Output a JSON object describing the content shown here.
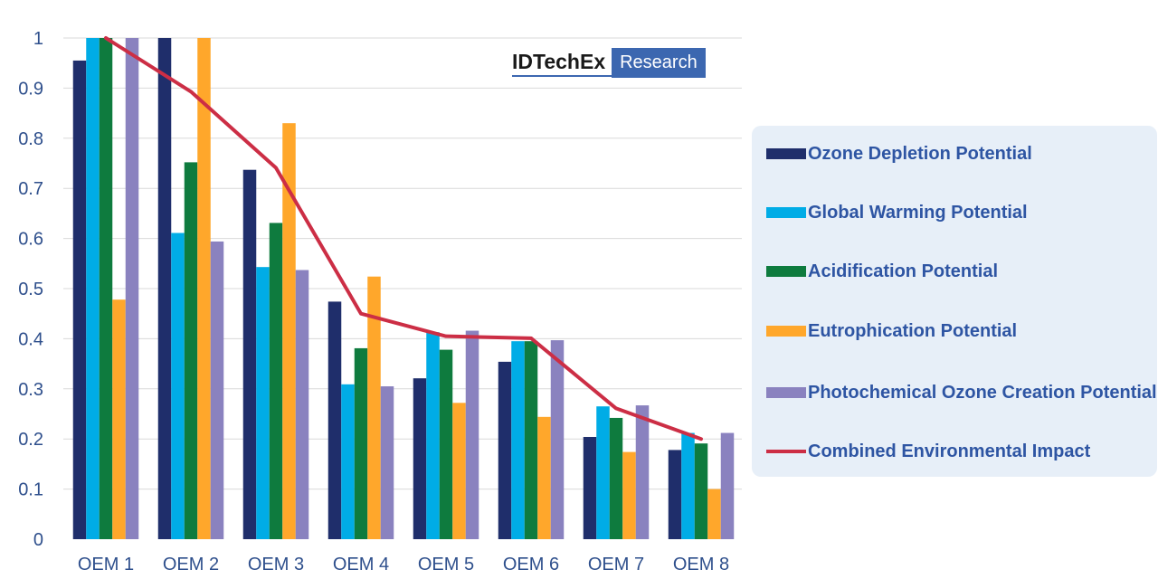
{
  "chart_data": {
    "type": "bar",
    "title": "",
    "xlabel": "",
    "ylabel": "",
    "ylim": [
      0,
      1
    ],
    "yticks": [
      "0",
      "0.1",
      "0.2",
      "0.3",
      "0.4",
      "0.5",
      "0.6",
      "0.7",
      "0.8",
      "0.9",
      "1"
    ],
    "categories": [
      "OEM 1",
      "OEM 2",
      "OEM 3",
      "OEM 4",
      "OEM 5",
      "OEM 6",
      "OEM 7",
      "OEM 8"
    ],
    "series": [
      {
        "name": "Ozone Depletion Potential",
        "color": "#1f2e6b",
        "values": [
          0.955,
          1.0,
          0.737,
          0.474,
          0.321,
          0.354,
          0.204,
          0.178
        ]
      },
      {
        "name": "Global Warming Potential",
        "color": "#00ace6",
        "values": [
          1.0,
          0.611,
          0.543,
          0.309,
          0.413,
          0.395,
          0.265,
          0.212
        ]
      },
      {
        "name": "Acidification Potential",
        "color": "#0e7b3e",
        "values": [
          1.0,
          0.752,
          0.631,
          0.381,
          0.378,
          0.395,
          0.242,
          0.191
        ]
      },
      {
        "name": "Eutrophication Potential",
        "color": "#ffa72b",
        "values": [
          0.478,
          1.0,
          0.83,
          0.524,
          0.272,
          0.244,
          0.174,
          0.1
        ]
      },
      {
        "name": "Photochemical Ozone Creation Potential",
        "color": "#8a82bf",
        "values": [
          1.0,
          0.594,
          0.537,
          0.305,
          0.416,
          0.397,
          0.267,
          0.212
        ]
      }
    ],
    "line_series": {
      "name": "Combined Environmental Impact",
      "color": "#cc2e45",
      "values": [
        1.0,
        0.893,
        0.741,
        0.45,
        0.405,
        0.401,
        0.261,
        0.2
      ]
    },
    "legend_position": "right",
    "grid": true
  },
  "logo": {
    "main": "IDTechEx",
    "sub": "Research"
  },
  "legend": {
    "items": [
      {
        "label": "Ozone Depletion Potential",
        "color": "#1f2e6b",
        "kind": "bar"
      },
      {
        "label": "Global Warming Potential",
        "color": "#00ace6",
        "kind": "bar"
      },
      {
        "label": "Acidification Potential",
        "color": "#0e7b3e",
        "kind": "bar"
      },
      {
        "label": "Eutrophication Potential",
        "color": "#ffa72b",
        "kind": "bar"
      },
      {
        "label": "Photochemical Ozone Creation Potential",
        "color": "#8a82bf",
        "kind": "bar"
      },
      {
        "label": "Combined Environmental Impact",
        "color": "#cc2e45",
        "kind": "line"
      }
    ]
  }
}
